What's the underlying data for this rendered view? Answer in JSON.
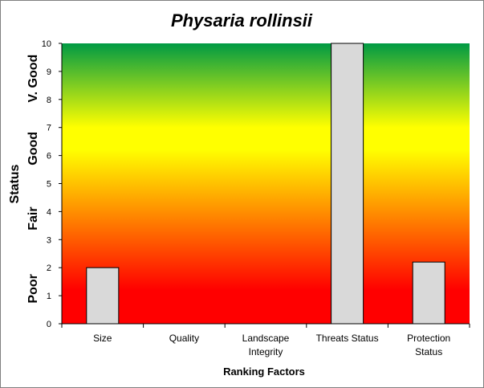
{
  "chart_data": {
    "type": "bar",
    "title": "Physaria rollinsii",
    "xlabel": "Ranking Factors",
    "ylabel": "Status",
    "categories": [
      "Size",
      "Quality",
      "Landscape Integrity",
      "Threats Status",
      "Protection Status"
    ],
    "values": [
      2.0,
      null,
      null,
      10.0,
      2.2
    ],
    "ylim": [
      0,
      10
    ],
    "yticks": [
      0,
      1,
      2,
      3,
      4,
      5,
      6,
      7,
      8,
      9,
      10
    ],
    "status_bands": [
      "Poor",
      "Fair",
      "Good",
      "V. Good"
    ],
    "background": "vertical gradient: red (low) → yellow (mid) → green (high)",
    "colors": {
      "low": "#ff0000",
      "mid": "#ffff00",
      "high": "#009a44",
      "bar_fill": "#d9d9d9",
      "bar_stroke": "#000000"
    },
    "grid": false,
    "legend": "none"
  }
}
